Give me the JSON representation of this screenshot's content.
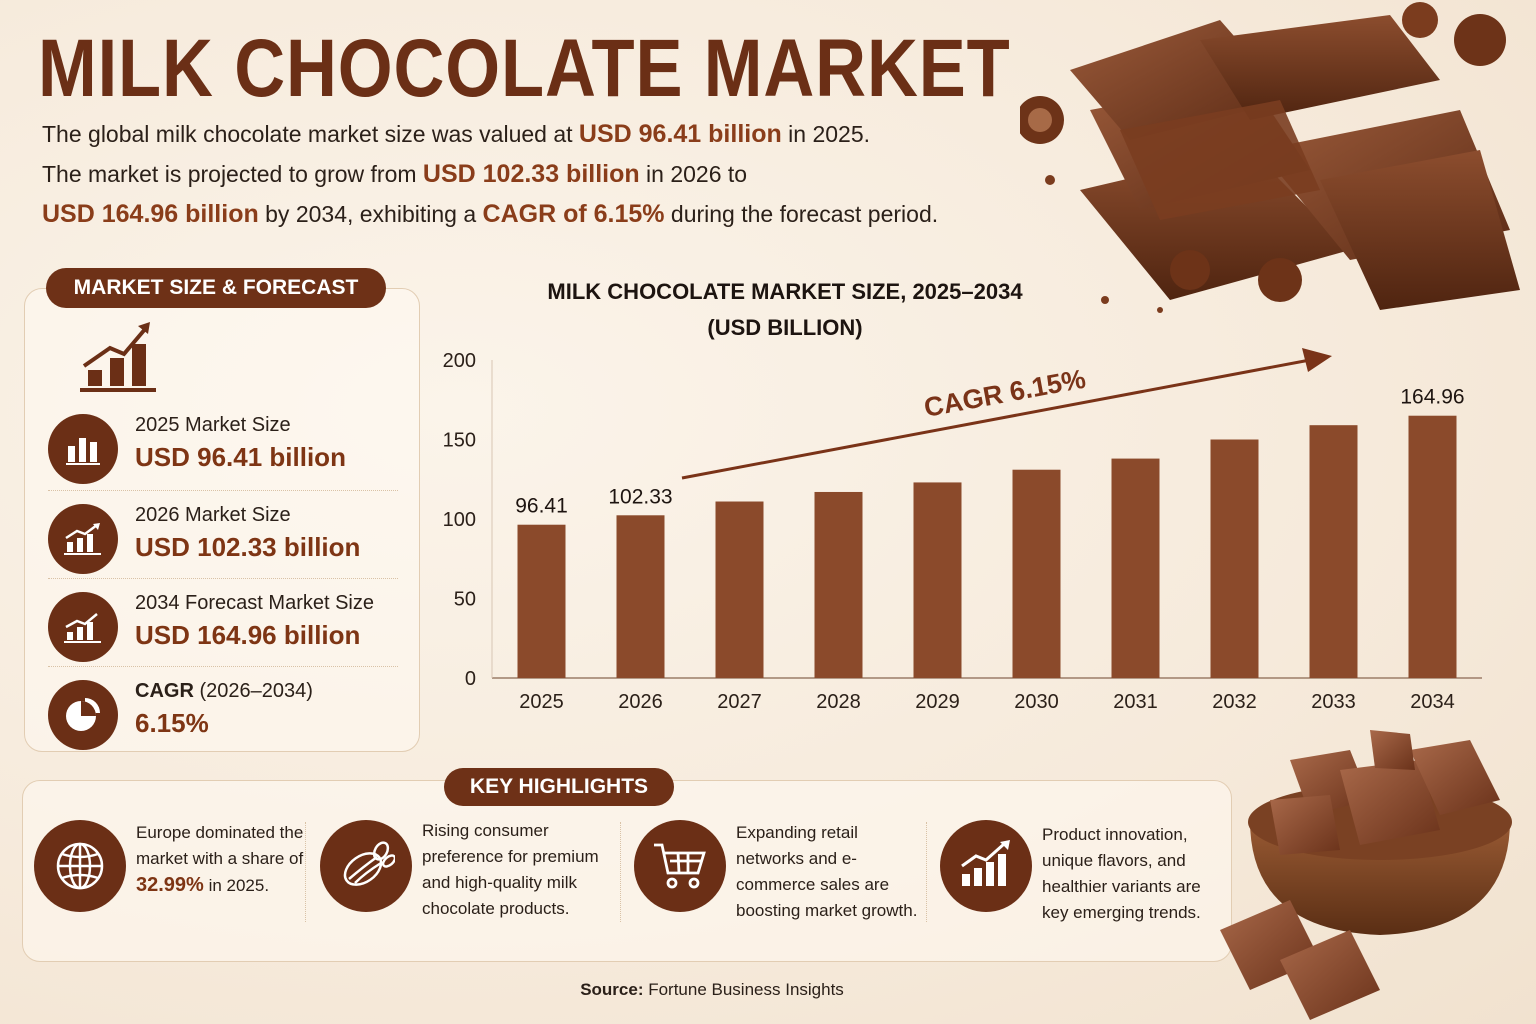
{
  "title": "MILK CHOCOLATE MARKET",
  "intro": {
    "l1_a": "The global milk chocolate market size was valued at ",
    "l1_hl": "USD 96.41 billion",
    "l1_b": " in 2025.",
    "l2_a": "The market is projected to grow from ",
    "l2_hl": "USD 102.33 billion",
    "l2_b": " in 2026 to",
    "l3_hl": "USD 164.96 billion",
    "l3_a": " by 2034, exhibiting a ",
    "l3_hl2": "CAGR of 6.15%",
    "l3_b": " during the forecast period."
  },
  "market_size": {
    "heading": "MARKET SIZE & FORECAST",
    "stats": [
      {
        "label": "2025 Market Size",
        "value": "USD 96.41 billion",
        "icon": "bar-chart-icon"
      },
      {
        "label": "2026 Market Size",
        "value": "USD 102.33 billion",
        "icon": "growth-chart-icon"
      },
      {
        "label": "2034 Forecast Market Size",
        "value": "USD 164.96 billion",
        "icon": "forecast-chart-icon"
      },
      {
        "label_bold": "CAGR",
        "label": " (2026–2034)",
        "value": "6.15%",
        "icon": "pie-chart-icon"
      }
    ]
  },
  "chart_title_l1": "MILK CHOCOLATE MARKET SIZE, 2025–2034",
  "chart_title_l2": "(USD BILLION)",
  "chart_data": {
    "type": "bar",
    "title": "MILK CHOCOLATE MARKET SIZE, 2025–2034 (USD BILLION)",
    "categories": [
      "2025",
      "2026",
      "2027",
      "2028",
      "2029",
      "2030",
      "2031",
      "2032",
      "2033",
      "2034"
    ],
    "values": [
      96.41,
      102.33,
      111,
      117,
      123,
      131,
      138,
      150,
      159,
      164.96
    ],
    "data_labels": {
      "0": "96.41",
      "1": "102.33",
      "9": "164.96"
    },
    "ylim": [
      0,
      200
    ],
    "yticks": [
      0,
      50,
      100,
      150,
      200
    ],
    "annotation": "CAGR 6.15%",
    "bar_color": "#8b4a2b",
    "grid": false
  },
  "highlights": {
    "heading": "KEY HIGHLIGHTS",
    "items": [
      {
        "icon": "globe-icon",
        "pre": "Europe dominated the market with a share of ",
        "bold": "32.99%",
        "post": " in 2025."
      },
      {
        "icon": "cocoa-pod-icon",
        "pre": "Rising consumer preference for premium and high-quality milk chocolate products.",
        "bold": "",
        "post": ""
      },
      {
        "icon": "shopping-cart-icon",
        "pre": "Expanding retail networks and e-commerce sales are boosting market growth.",
        "bold": "",
        "post": ""
      },
      {
        "icon": "trend-chart-icon",
        "pre": "Product innovation, unique flavors, and healthier variants are key emerging trends.",
        "bold": "",
        "post": ""
      }
    ]
  },
  "source": {
    "label": "Source:",
    "text": " Fortune Business Insights"
  },
  "colors": {
    "brand": "#6b2f16",
    "accent": "#8a3d1a",
    "bar": "#8b4a2b",
    "background": "#f8efe3"
  }
}
